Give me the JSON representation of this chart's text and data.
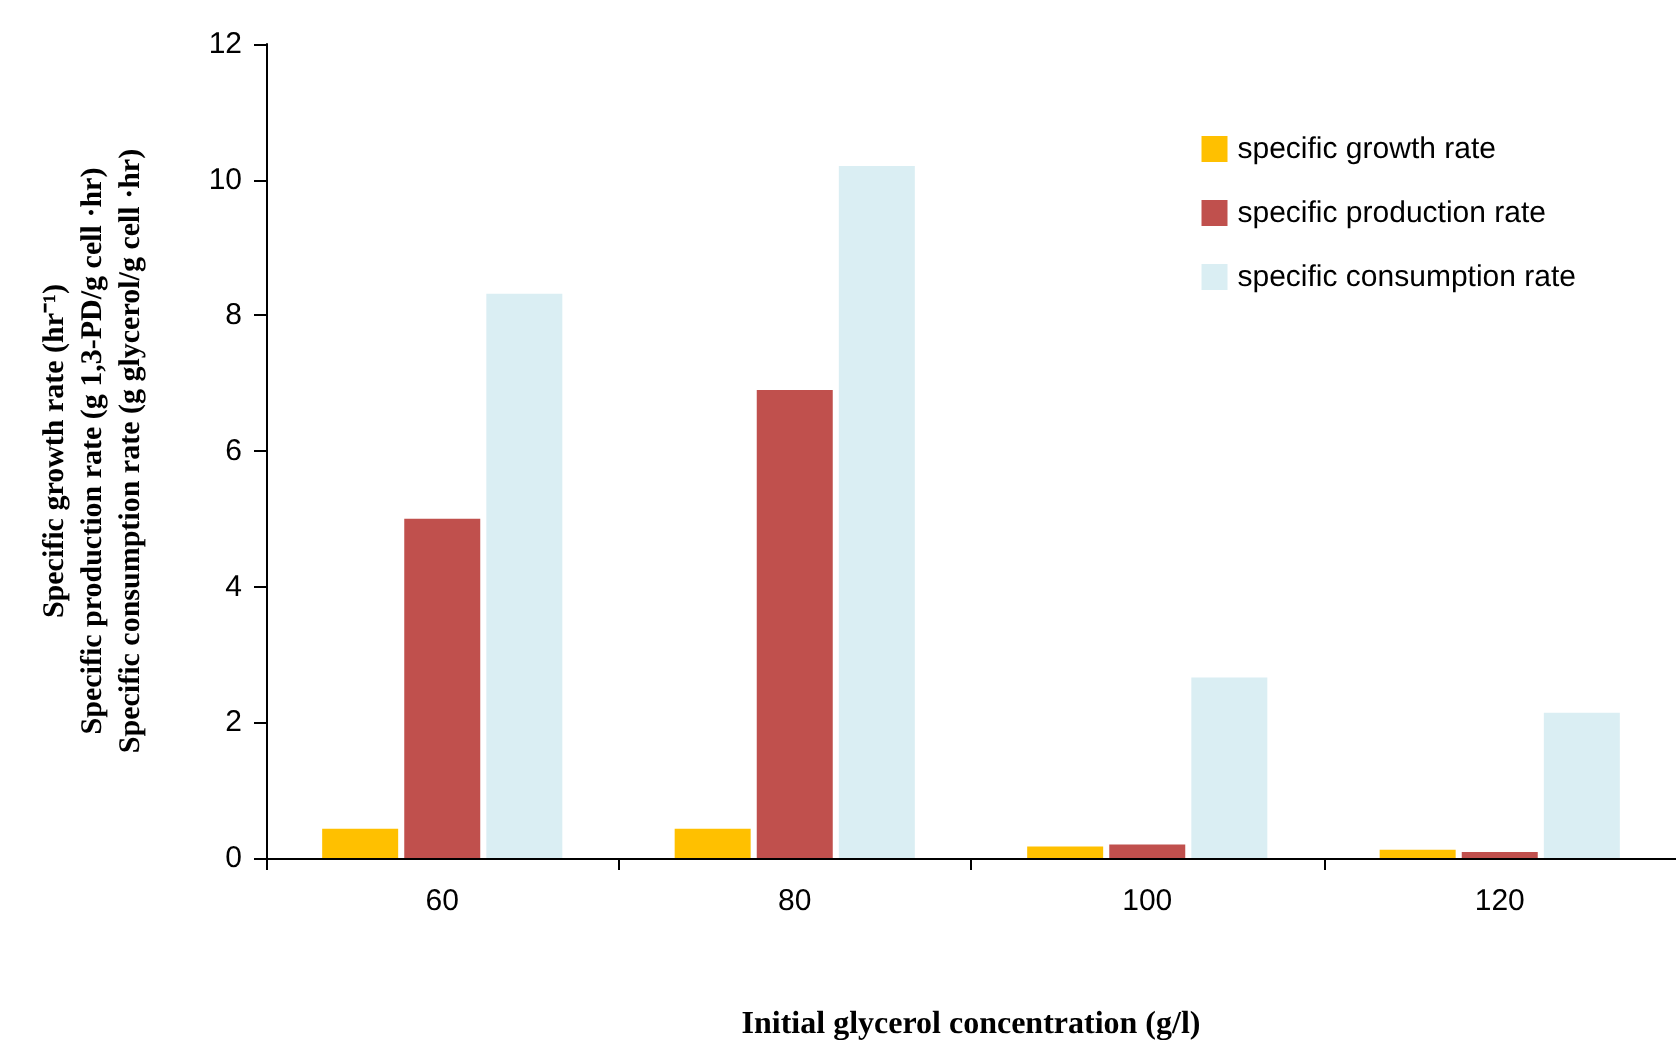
{
  "chart_data": {
    "type": "bar",
    "xlabel": "Initial glycerol concentration (g/l)",
    "ylabel": "Specific growth rate (hr⁻¹)\nSpecific production rate (g 1,3-PD/g cell ·hr)\nSpecific consumption rate (g glycerol/g cell ·hr)",
    "categories": [
      "60",
      "80",
      "100",
      "120"
    ],
    "series": [
      {
        "name": "specific growth rate",
        "color": "#ffc000",
        "values": [
          0.43,
          0.43,
          0.17,
          0.12
        ]
      },
      {
        "name": "specific production rate",
        "color": "#c0504d",
        "values": [
          5.0,
          6.9,
          0.2,
          0.09
        ]
      },
      {
        "name": "specific consumption rate",
        "color": "#daeef3",
        "values": [
          8.32,
          10.2,
          2.66,
          2.14
        ]
      }
    ],
    "ylim": [
      0,
      12
    ],
    "yticks": [
      0,
      2,
      4,
      6,
      8,
      10,
      12
    ],
    "grid": false,
    "legend": "top right"
  }
}
